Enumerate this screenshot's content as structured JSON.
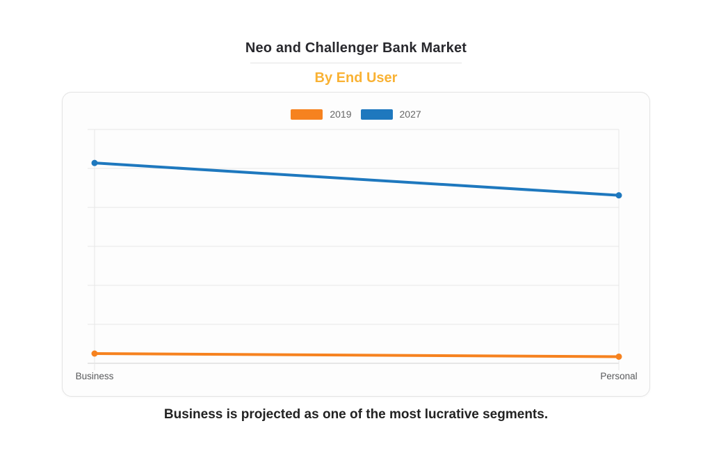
{
  "page": {
    "title": "Neo and Challenger Bank Market",
    "subtitle": "By End User",
    "caption": "Business is projected as one of the most lucrative segments."
  },
  "colors": {
    "title_text": "#28282d",
    "subtitle_text": "#f9b234",
    "caption_text": "#222222",
    "legend_text": "#666666",
    "axis_label_text": "#58595b",
    "gridline": "#e7e7e7",
    "axis_line": "#cfcfcf",
    "series_2019": "#f6821f",
    "series_2027": "#1e78be",
    "card_background": "#fdfdfd",
    "card_border": "#e3e3e3"
  },
  "legend": [
    {
      "label": "2019",
      "color": "#f6821f"
    },
    {
      "label": "2027",
      "color": "#1e78be"
    }
  ],
  "chart_data": {
    "type": "line",
    "title": "Neo and Challenger Bank Market",
    "subtitle": "By End User",
    "categories": [
      "Business",
      "Personal"
    ],
    "series": [
      {
        "name": "2019",
        "color": "#f6821f",
        "values": [
          0.25,
          0.17
        ]
      },
      {
        "name": "2027",
        "color": "#1e78be",
        "values": [
          5.14,
          4.31
        ]
      }
    ],
    "xlabel": "",
    "ylabel": "",
    "value_units": "unlabeled axis units (1 unit = 1 gridline interval)",
    "ylim": [
      0,
      6
    ],
    "y_axis": {
      "tick_labels_visible": false,
      "gridline_count": 7
    },
    "grid": true,
    "markers": true,
    "legend_position": "top-center"
  }
}
